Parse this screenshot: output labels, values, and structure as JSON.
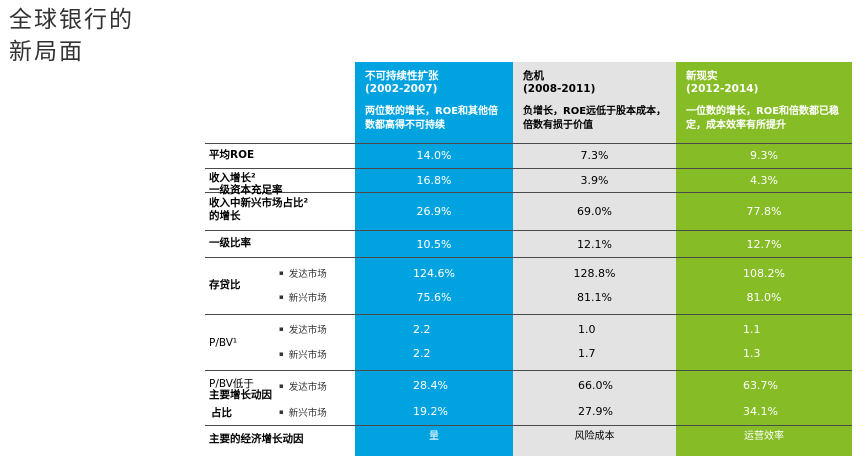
{
  "title": {
    "line1": "全球银行的",
    "line2": "新局面"
  },
  "columns": [
    {
      "title": "不可持续性扩张",
      "period": "(2002-2007)",
      "desc": "两位数的增长，ROE和其他倍数都高得不可持续"
    },
    {
      "title": "危机",
      "period": "(2008-2011)",
      "desc": "负增长，ROE远低于股本成本，倍数有损于价值"
    },
    {
      "title": "新现实",
      "period": "(2012-2014)",
      "desc": "一位数的增长，ROE和倍数都已稳定，成本效率有所提升"
    }
  ],
  "colors": {
    "col1": "#00a3e0",
    "col2": "#e3e3e3",
    "col3": "#86bc25",
    "rule": "#4b4b4b"
  },
  "rows": {
    "avg_roe": {
      "label": "平均ROE",
      "v": [
        "14.0%",
        "7.3%",
        "9.3%"
      ]
    },
    "rev_growth": {
      "label": "收入增长²",
      "v": [
        "16.8%",
        "3.9%",
        "4.3%"
      ]
    },
    "tier1_overlap": "一级资本充足率",
    "emerging_share": {
      "label1": "收入中新兴市场占比²",
      "label2": "的增长",
      "v": [
        "26.9%",
        "69.0%",
        "77.8%"
      ]
    },
    "tier1": {
      "label": "一级比率",
      "v": [
        "10.5%",
        "12.1%",
        "12.7%"
      ]
    },
    "ldr": {
      "label": "存贷比",
      "developed": {
        "label": "发达市场",
        "v": [
          "124.6%",
          "128.8%",
          "108.2%"
        ]
      },
      "emerging": {
        "label": "新兴市场",
        "v": [
          "75.6%",
          "81.1%",
          "81.0%"
        ]
      }
    },
    "pbv": {
      "label": "P/BV¹",
      "developed": {
        "label": "发达市场",
        "v": [
          "2.2",
          "1.0",
          "1.1"
        ]
      },
      "emerging": {
        "label": "新兴市场",
        "v": [
          "2.2",
          "1.7",
          "1.3"
        ]
      }
    },
    "pbv_low": {
      "label_a": "P/BV低于",
      "label_b": "主要增长动因",
      "label_c": "占比",
      "developed": {
        "label": "发达市场",
        "v": [
          "28.4%",
          "66.0%",
          "63.7%"
        ]
      },
      "emerging": {
        "label": "新兴市场",
        "v": [
          "19.2%",
          "27.9%",
          "34.1%"
        ]
      }
    },
    "drivers": {
      "label": "主要的经济增长动因",
      "v": [
        "量",
        "风险成本",
        "运营效率"
      ]
    }
  }
}
